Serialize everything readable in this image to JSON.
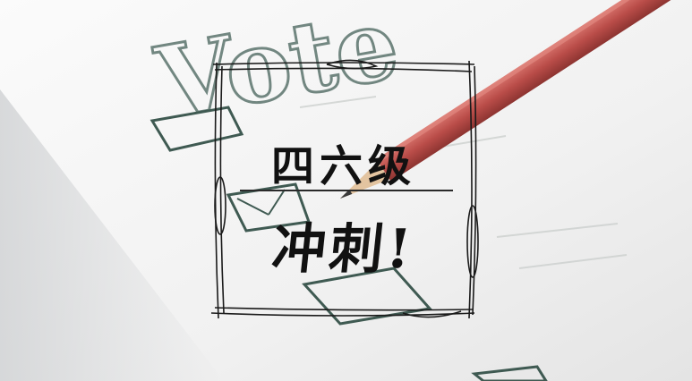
{
  "background": {
    "watermark_text": "Vote",
    "paper_color": "#f4f4f4",
    "checkbox_color": "#3f5a52",
    "pencil_color": "#c25a55"
  },
  "title": {
    "line1": "四六级",
    "line2": "冲刺!"
  }
}
